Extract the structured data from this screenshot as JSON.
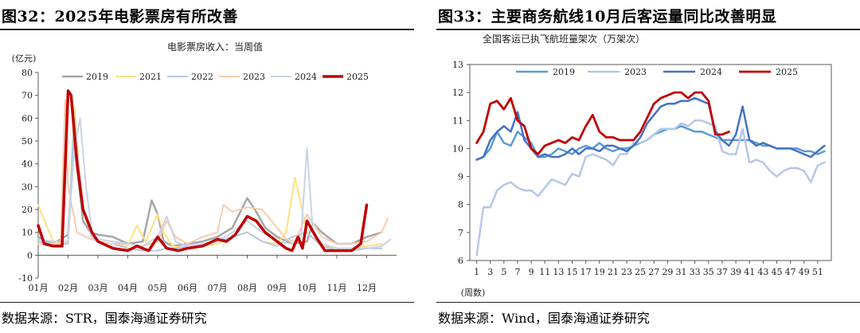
{
  "left": {
    "title": "图32：2025年电影票房有所改善",
    "source": "数据来源：STR，国泰海通证券研究"
  },
  "right": {
    "title": "图33：主要商务航线10月后客运量同比改善明显",
    "source": "数据来源：Wind，国泰海通证券研究"
  },
  "chart_data": [
    {
      "type": "line",
      "title": "电影票房收入：当周值",
      "ylabel": "(亿元)",
      "xlabel": "",
      "ylim": [
        -10,
        80
      ],
      "yticks": [
        -10,
        0,
        10,
        20,
        30,
        40,
        50,
        60,
        70,
        80
      ],
      "categories": [
        "01月",
        "02月",
        "03月",
        "04月",
        "05月",
        "06月",
        "07月",
        "08月",
        "09月",
        "10月",
        "11月",
        "12月"
      ],
      "x_domain": [
        1,
        13
      ],
      "grid": false,
      "legend_position": "top",
      "series": [
        {
          "name": "2019",
          "color": "#a6a6a6",
          "width": 2.5,
          "x": [
            1.0,
            1.25,
            1.5,
            1.75,
            2.0,
            2.2,
            2.5,
            2.75,
            3.0,
            3.5,
            4.0,
            4.5,
            4.8,
            5.0,
            5.2,
            5.5,
            6.0,
            6.5,
            7.0,
            7.5,
            8.0,
            8.3,
            8.6,
            9.0,
            9.5,
            10.0,
            10.2,
            10.5,
            11.0,
            11.5,
            12.0,
            12.5
          ],
          "y": [
            8,
            6,
            5,
            7,
            9,
            50,
            15,
            10,
            9,
            8,
            5,
            6,
            24,
            18,
            6,
            4,
            5,
            6,
            8,
            12,
            25,
            19,
            12,
            8,
            5,
            6,
            14,
            10,
            5,
            5,
            8,
            10
          ]
        },
        {
          "name": "2021",
          "color": "#ffe082",
          "width": 2,
          "x": [
            1.0,
            1.5,
            1.8,
            2.0,
            2.2,
            2.5,
            2.8,
            3.0,
            3.5,
            4.0,
            4.3,
            4.6,
            5.0,
            5.2,
            5.5,
            6.0,
            6.5,
            7.0,
            7.5,
            8.0,
            8.5,
            9.0,
            9.3,
            9.6,
            10.0,
            10.5,
            11.0,
            11.5,
            12.0,
            12.5
          ],
          "y": [
            22,
            6,
            5,
            6,
            65,
            20,
            8,
            6,
            5,
            4,
            13,
            6,
            18,
            10,
            4,
            3,
            4,
            5,
            8,
            10,
            6,
            5,
            10,
            34,
            10,
            4,
            3,
            3,
            4,
            5
          ]
        },
        {
          "name": "2022",
          "color": "#b4c7e7",
          "width": 2,
          "x": [
            1.0,
            1.5,
            2.0,
            2.2,
            2.5,
            2.8,
            3.0,
            3.5,
            4.0,
            4.5,
            5.0,
            5.3,
            5.6,
            6.0,
            6.5,
            7.0,
            7.5,
            8.0,
            8.5,
            9.0,
            9.5,
            10.0,
            10.5,
            11.0,
            11.5,
            12.0,
            12.5
          ],
          "y": [
            6,
            5,
            5,
            60,
            20,
            8,
            6,
            5,
            3,
            2,
            2,
            3,
            3,
            4,
            5,
            6,
            8,
            10,
            6,
            4,
            8,
            10,
            4,
            2,
            2,
            3,
            3
          ]
        },
        {
          "name": "2023",
          "color": "#f8cbad",
          "width": 2,
          "x": [
            1.0,
            1.5,
            1.75,
            1.9,
            2.0,
            2.3,
            2.6,
            3.0,
            3.5,
            4.0,
            4.5,
            5.0,
            5.3,
            5.6,
            6.0,
            6.5,
            7.0,
            7.2,
            7.5,
            8.0,
            8.5,
            9.0,
            9.3,
            9.6,
            10.0,
            10.5,
            11.0,
            11.5,
            12.0,
            12.5,
            12.7
          ],
          "y": [
            5,
            5,
            5,
            68,
            30,
            10,
            8,
            6,
            5,
            5,
            4,
            6,
            15,
            8,
            5,
            8,
            10,
            22,
            19,
            21,
            20,
            12,
            7,
            6,
            18,
            8,
            5,
            5,
            6,
            10,
            16
          ]
        },
        {
          "name": "2024",
          "color": "#c9d3e6",
          "width": 2,
          "x": [
            1.0,
            1.5,
            2.0,
            2.2,
            2.4,
            2.6,
            2.8,
            3.0,
            3.5,
            4.0,
            4.5,
            5.0,
            5.3,
            5.6,
            6.0,
            6.5,
            7.0,
            7.5,
            8.0,
            8.5,
            9.0,
            9.5,
            9.8,
            10.0,
            10.2,
            10.5,
            11.0,
            11.5,
            12.0,
            12.5,
            12.8
          ],
          "y": [
            7,
            6,
            6,
            45,
            60,
            30,
            10,
            7,
            6,
            5,
            4,
            8,
            17,
            6,
            4,
            5,
            6,
            10,
            15,
            10,
            6,
            5,
            8,
            47,
            10,
            5,
            3,
            3,
            3,
            4,
            7
          ]
        },
        {
          "name": "2025",
          "color": "#c00000",
          "width": 3.5,
          "x": [
            1.0,
            1.2,
            1.5,
            1.8,
            2.0,
            2.1,
            2.3,
            2.5,
            2.8,
            3.0,
            3.5,
            4.0,
            4.3,
            4.7,
            5.0,
            5.3,
            5.7,
            6.0,
            6.5,
            7.0,
            7.3,
            7.6,
            8.0,
            8.3,
            8.6,
            9.0,
            9.3,
            9.5,
            9.7,
            9.85,
            10.0,
            10.3,
            10.6,
            11.0,
            11.5,
            11.8,
            12.0
          ],
          "y": [
            13,
            5,
            4,
            4,
            72,
            70,
            40,
            20,
            10,
            6,
            3,
            2,
            4,
            2,
            8,
            3,
            2,
            3,
            4,
            7,
            6,
            9,
            17,
            15,
            10,
            6,
            3,
            2,
            8,
            3,
            15,
            8,
            2,
            2,
            2,
            5,
            22
          ]
        }
      ]
    },
    {
      "type": "line",
      "title": "全国客运已执飞航班量架次（万架次）",
      "ylabel": "",
      "xlabel": "(周数)",
      "ylim": [
        6,
        13
      ],
      "yticks": [
        6,
        7,
        8,
        9,
        10,
        11,
        12,
        13
      ],
      "xticks": [
        1,
        3,
        5,
        7,
        9,
        11,
        13,
        15,
        17,
        19,
        21,
        23,
        25,
        27,
        29,
        31,
        33,
        35,
        37,
        39,
        41,
        43,
        45,
        47,
        49,
        51
      ],
      "x_domain": [
        0,
        53
      ],
      "grid": false,
      "legend_position": "top",
      "series": [
        {
          "name": "2019",
          "color": "#5b9bd5",
          "width": 2.5,
          "x": [
            1,
            2,
            3,
            4,
            5,
            6,
            7,
            8,
            9,
            10,
            11,
            12,
            13,
            14,
            15,
            16,
            17,
            18,
            19,
            20,
            21,
            22,
            23,
            24,
            25,
            26,
            27,
            28,
            29,
            30,
            31,
            32,
            33,
            34,
            35,
            36,
            37,
            38,
            39,
            40,
            41,
            42,
            43,
            44,
            45,
            46,
            47,
            48,
            49,
            50,
            51,
            52
          ],
          "y": [
            9.6,
            9.7,
            10.0,
            10.6,
            10.2,
            10.1,
            10.6,
            10.4,
            10.2,
            9.7,
            9.7,
            9.8,
            10.0,
            9.9,
            9.8,
            10.0,
            10.1,
            10.0,
            10.2,
            10.0,
            9.9,
            10.0,
            10.0,
            10.1,
            10.2,
            10.3,
            10.5,
            10.6,
            10.7,
            10.7,
            10.8,
            10.7,
            10.6,
            10.6,
            10.5,
            10.4,
            10.3,
            10.3,
            10.3,
            10.3,
            10.3,
            10.2,
            10.1,
            10.1,
            10.0,
            10.0,
            10.0,
            10.0,
            9.9,
            9.9,
            9.8,
            9.9
          ]
        },
        {
          "name": "2023",
          "color": "#b4c7e7",
          "width": 2.5,
          "x": [
            1,
            2,
            3,
            4,
            5,
            6,
            7,
            8,
            9,
            10,
            11,
            12,
            13,
            14,
            15,
            16,
            17,
            18,
            19,
            20,
            21,
            22,
            23,
            24,
            25,
            26,
            27,
            28,
            29,
            30,
            31,
            32,
            33,
            34,
            35,
            36,
            37,
            38,
            39,
            40,
            41,
            42,
            43,
            44,
            45,
            46,
            47,
            48,
            49,
            50,
            51,
            52
          ],
          "y": [
            6.2,
            7.9,
            7.9,
            8.5,
            8.7,
            8.8,
            8.6,
            8.5,
            8.5,
            8.3,
            8.6,
            8.9,
            8.8,
            8.7,
            9.1,
            9.0,
            9.7,
            9.8,
            9.7,
            9.6,
            9.4,
            9.8,
            9.8,
            10.2,
            10.2,
            10.3,
            10.5,
            10.7,
            10.7,
            10.7,
            10.9,
            10.8,
            11.0,
            11.0,
            10.9,
            10.8,
            9.9,
            9.8,
            9.8,
            10.7,
            9.5,
            9.6,
            9.5,
            9.2,
            9.0,
            9.2,
            9.3,
            9.3,
            9.2,
            8.8,
            9.4,
            9.5
          ]
        },
        {
          "name": "2024",
          "color": "#4472c4",
          "width": 2.5,
          "x": [
            1,
            2,
            3,
            4,
            5,
            6,
            7,
            8,
            9,
            10,
            11,
            12,
            13,
            14,
            15,
            16,
            17,
            18,
            19,
            20,
            21,
            22,
            23,
            24,
            25,
            26,
            27,
            28,
            29,
            30,
            31,
            32,
            33,
            34,
            35,
            36,
            37,
            38,
            39,
            40,
            41,
            42,
            43,
            44,
            45,
            46,
            47,
            48,
            49,
            50,
            51,
            52
          ],
          "y": [
            9.6,
            9.7,
            10.3,
            10.6,
            10.8,
            10.6,
            11.3,
            10.3,
            10.0,
            9.7,
            9.8,
            9.7,
            9.7,
            9.8,
            10.0,
            9.8,
            10.0,
            10.0,
            9.9,
            10.1,
            10.1,
            10.0,
            9.9,
            10.1,
            10.4,
            10.9,
            11.2,
            11.5,
            11.6,
            11.6,
            11.7,
            11.7,
            11.8,
            11.7,
            11.6,
            10.6,
            10.3,
            10.1,
            10.5,
            11.5,
            10.3,
            10.1,
            10.2,
            10.1,
            10.0,
            10.0,
            10.0,
            9.9,
            9.8,
            9.7,
            9.9,
            10.1
          ]
        },
        {
          "name": "2025",
          "color": "#c00000",
          "width": 2.8,
          "x": [
            1,
            2,
            3,
            4,
            5,
            6,
            7,
            8,
            9,
            10,
            11,
            12,
            13,
            14,
            15,
            16,
            17,
            18,
            19,
            20,
            21,
            22,
            23,
            24,
            25,
            26,
            27,
            28,
            29,
            30,
            31,
            32,
            33,
            34,
            35,
            36,
            37,
            38
          ],
          "y": [
            10.2,
            10.6,
            11.6,
            11.7,
            11.4,
            11.8,
            11.0,
            10.8,
            10.0,
            9.8,
            10.1,
            10.2,
            10.3,
            10.2,
            10.4,
            10.3,
            10.8,
            11.2,
            10.6,
            10.4,
            10.4,
            10.3,
            10.3,
            10.3,
            10.6,
            11.1,
            11.6,
            11.8,
            11.9,
            12.0,
            12.0,
            11.8,
            12.0,
            12.0,
            11.7,
            10.5,
            10.5,
            10.6
          ]
        }
      ]
    }
  ]
}
